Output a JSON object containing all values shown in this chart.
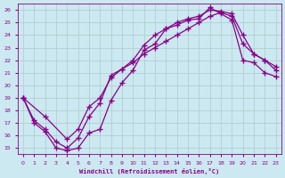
{
  "xlabel": "Windchill (Refroidissement éolien,°C)",
  "background_color": "#cce8f0",
  "line_color": "#880088",
  "xlim": [
    -0.5,
    23.5
  ],
  "ylim": [
    14.5,
    26.5
  ],
  "xticks": [
    0,
    1,
    2,
    3,
    4,
    5,
    6,
    7,
    8,
    9,
    10,
    11,
    12,
    13,
    14,
    15,
    16,
    17,
    18,
    19,
    20,
    21,
    22,
    23
  ],
  "yticks": [
    15,
    16,
    17,
    18,
    19,
    20,
    21,
    22,
    23,
    24,
    25,
    26
  ],
  "grid_color": "#aacccc",
  "marker": "+",
  "markersize": 4,
  "linewidth": 0.9,
  "lines": [
    {
      "x": [
        0,
        1,
        2,
        3,
        4,
        5,
        6,
        7,
        8,
        9,
        10,
        11,
        12,
        13,
        14,
        15,
        16,
        17,
        18,
        19,
        20,
        21,
        22,
        23
      ],
      "y": [
        19,
        17.2,
        16.5,
        15.5,
        15.0,
        15.8,
        17.5,
        18.6,
        20.8,
        21.3,
        21.8,
        22.5,
        23.0,
        23.5,
        24.0,
        24.5,
        25.0,
        25.5,
        25.8,
        25.5,
        23.3,
        22.5,
        22.0,
        21.5
      ]
    },
    {
      "x": [
        0,
        1,
        2,
        3,
        4,
        5,
        6,
        7,
        8,
        9,
        10,
        11,
        12,
        13,
        14,
        15,
        16,
        17,
        18,
        19,
        20,
        21,
        22,
        23
      ],
      "y": [
        19,
        17,
        16.3,
        15.0,
        14.8,
        15.0,
        16.2,
        16.5,
        18.8,
        20.2,
        21.2,
        22.8,
        23.3,
        24.5,
        24.8,
        25.2,
        25.3,
        26.2,
        25.7,
        25.2,
        22.0,
        21.8,
        21.0,
        20.7
      ]
    },
    {
      "x": [
        0,
        2,
        4,
        5,
        6,
        7,
        8,
        9,
        10,
        11,
        12,
        13,
        14,
        15,
        16,
        17,
        18,
        19,
        20,
        21,
        22,
        23
      ],
      "y": [
        19,
        17.5,
        15.7,
        16.5,
        18.3,
        19.0,
        20.6,
        21.3,
        22.0,
        23.2,
        24.0,
        24.5,
        25.0,
        25.3,
        25.5,
        26.0,
        25.9,
        25.7,
        24.0,
        22.5,
        22.0,
        21.2
      ]
    }
  ]
}
